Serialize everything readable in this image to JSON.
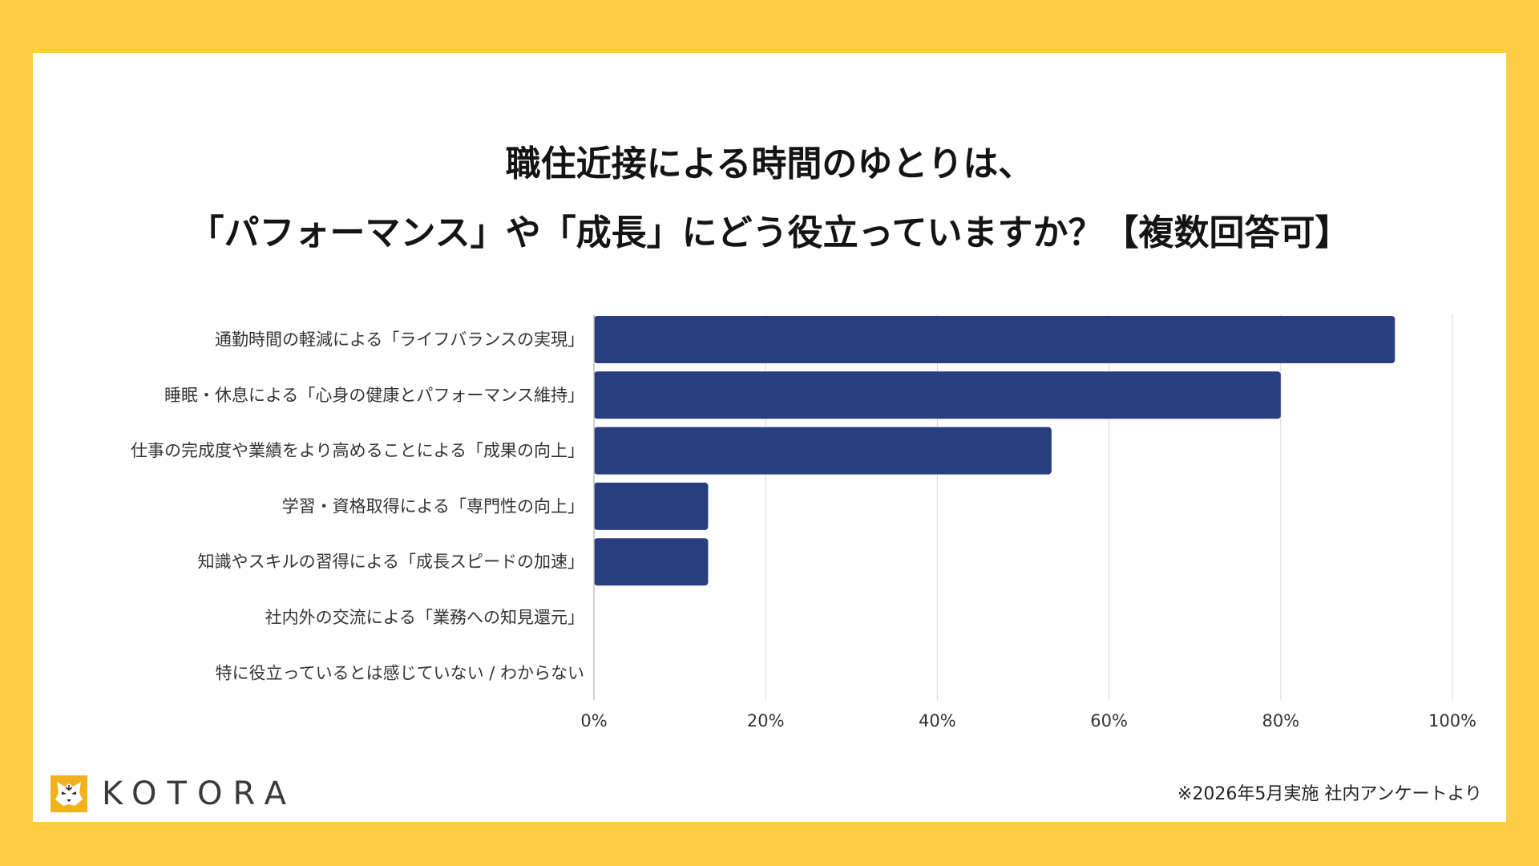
{
  "title_lines": [
    "職住近接による時間のゆとりは、",
    "「パフォーマンス」や「成長」にどう役立っていますか？【複数回答可】"
  ],
  "chart_data": {
    "type": "bar",
    "orientation": "horizontal",
    "categories": [
      "通勤時間の軽減による「ライフバランスの実現」",
      "睡眠・休息による「心身の健康とパフォーマンス維持」",
      "仕事の完成度や業績をより高めることによる「成果の向上」",
      "学習・資格取得による「専門性の向上」",
      "知識やスキルの習得による「成長スピードの加速」",
      "社内外の交流による「業務への知見還元」",
      "特に役立っているとは感じていない / わからない"
    ],
    "values": [
      93.3,
      80,
      53.3,
      13.3,
      13.3,
      0,
      0
    ],
    "xlim": [
      0,
      100
    ],
    "xticks": [
      0,
      20,
      40,
      60,
      80,
      100
    ],
    "xtick_labels": [
      "0%",
      "20%",
      "40%",
      "60%",
      "80%",
      "100%"
    ],
    "bar_color": "#293E7E",
    "grid": true
  },
  "logo": {
    "text": "KOTORA",
    "icon": "tiger-face-icon"
  },
  "source_note": "※2026年5月実施 社内アンケートより",
  "colors": {
    "frame": "#FECD45",
    "card": "#FFFFFF",
    "bar": "#293E7E"
  }
}
